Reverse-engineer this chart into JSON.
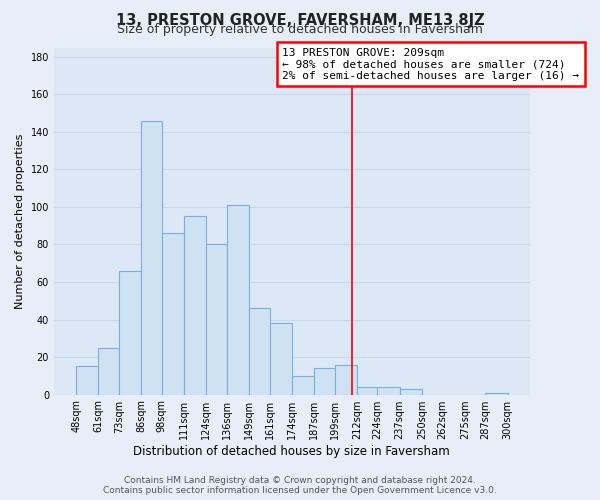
{
  "title": "13, PRESTON GROVE, FAVERSHAM, ME13 8JZ",
  "subtitle": "Size of property relative to detached houses in Faversham",
  "xlabel": "Distribution of detached houses by size in Faversham",
  "ylabel": "Number of detached properties",
  "bar_left_edges": [
    48,
    61,
    73,
    86,
    98,
    111,
    124,
    136,
    149,
    161,
    174,
    187,
    199,
    212,
    224,
    237,
    250,
    262,
    275,
    287
  ],
  "bar_widths": [
    13,
    12,
    13,
    12,
    13,
    13,
    12,
    13,
    12,
    13,
    13,
    12,
    13,
    12,
    13,
    13,
    12,
    13,
    12,
    13
  ],
  "bar_heights": [
    15,
    25,
    66,
    146,
    86,
    95,
    80,
    101,
    46,
    38,
    10,
    14,
    16,
    4,
    4,
    3,
    0,
    0,
    0,
    1
  ],
  "bar_color": "#cfe2f3",
  "bar_edge_color": "#7ab0d8",
  "bar_edge_width": 0.8,
  "ylim": [
    0,
    185
  ],
  "yticks": [
    0,
    20,
    40,
    60,
    80,
    100,
    120,
    140,
    160,
    180
  ],
  "xtick_labels": [
    "48sqm",
    "61sqm",
    "73sqm",
    "86sqm",
    "98sqm",
    "111sqm",
    "124sqm",
    "136sqm",
    "149sqm",
    "161sqm",
    "174sqm",
    "187sqm",
    "199sqm",
    "212sqm",
    "224sqm",
    "237sqm",
    "250sqm",
    "262sqm",
    "275sqm",
    "287sqm",
    "300sqm"
  ],
  "xtick_positions": [
    48,
    61,
    73,
    86,
    98,
    111,
    124,
    136,
    149,
    161,
    174,
    187,
    199,
    212,
    224,
    237,
    250,
    262,
    275,
    287,
    300
  ],
  "property_line_x": 209,
  "annotation_title": "13 PRESTON GROVE: 209sqm",
  "annotation_line1": "← 98% of detached houses are smaller (724)",
  "annotation_line2": "2% of semi-detached houses are larger (16) →",
  "footer_line1": "Contains HM Land Registry data © Crown copyright and database right 2024.",
  "footer_line2": "Contains public sector information licensed under the Open Government Licence v3.0.",
  "background_color": "#e8eef7",
  "plot_bg_color": "#dce8f5",
  "grid_color": "#c8d8eb",
  "title_fontsize": 10.5,
  "subtitle_fontsize": 9,
  "xlabel_fontsize": 8.5,
  "ylabel_fontsize": 8,
  "tick_fontsize": 7,
  "footer_fontsize": 6.5,
  "annotation_fontsize": 8,
  "xlim_left": 35,
  "xlim_right": 313
}
